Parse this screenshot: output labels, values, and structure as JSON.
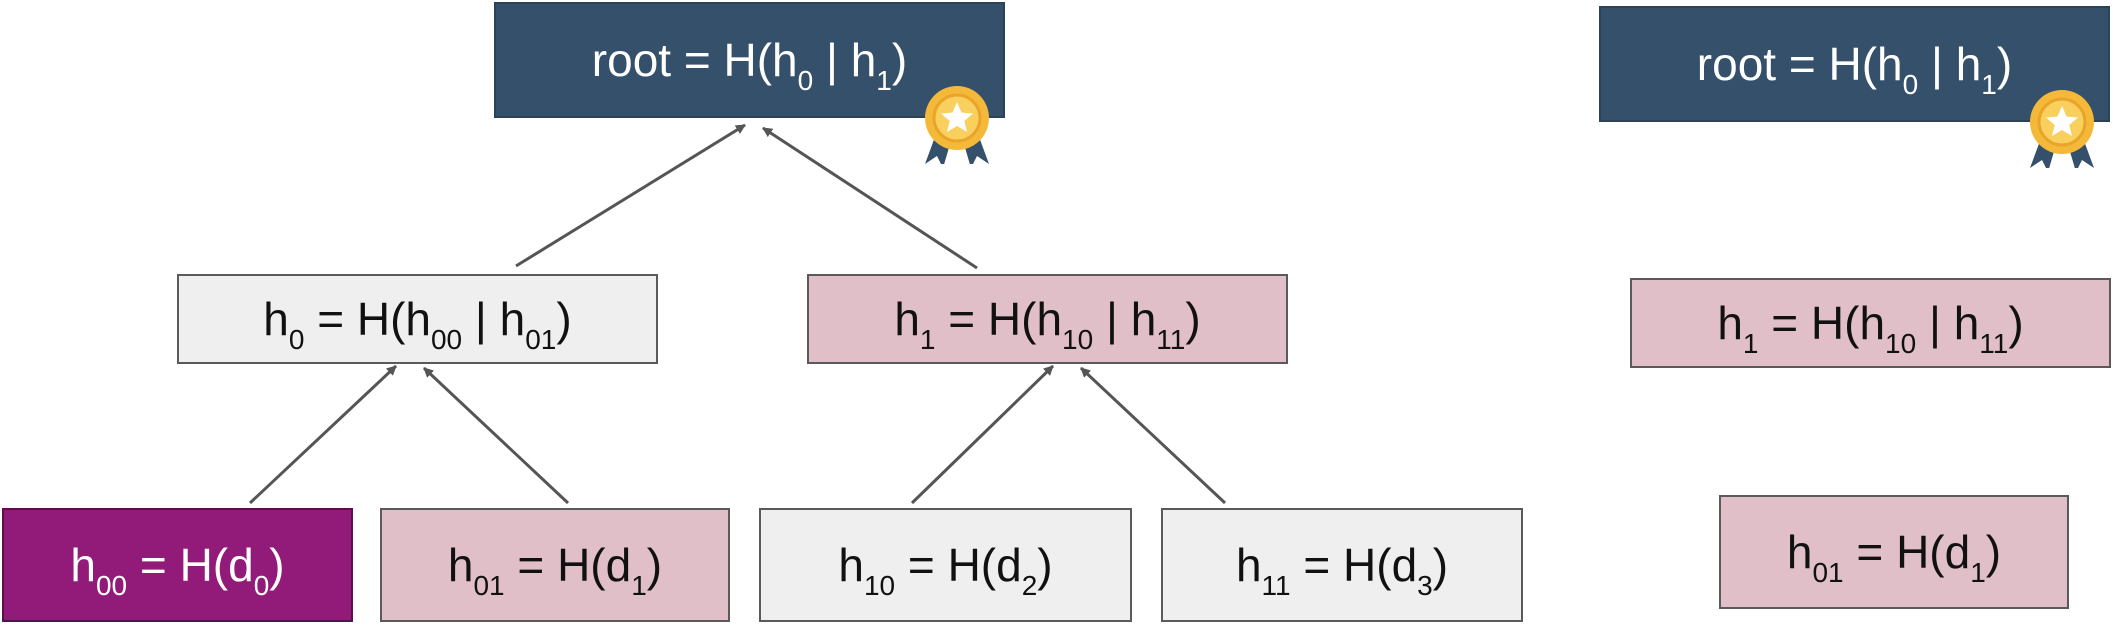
{
  "colors": {
    "root": "#35506a",
    "neutral": "#efefef",
    "proof": "#e0bfc9",
    "leaf_highlight": "#921a78",
    "edge": "#555555",
    "badge_gold": "#f5b93a",
    "badge_ribbon": "#35506a"
  },
  "icons": {
    "root_badge": "award-badge-icon"
  },
  "tree": {
    "root": {
      "base": "root = H(h",
      "s1": "0",
      "mid": " | h",
      "s2": "1",
      "end": ")"
    },
    "h0": {
      "a": "h",
      "s0": "0",
      "b": " = H(h",
      "s1": "00",
      "c": " | h",
      "s2": "01",
      "d": ")"
    },
    "h1": {
      "a": "h",
      "s0": "1",
      "b": " = H(h",
      "s1": "10",
      "c": " | h",
      "s2": "11",
      "d": ")"
    },
    "h00": {
      "a": "h",
      "s0": "00",
      "b": " = H(d",
      "s1": "0",
      "c": ")"
    },
    "h01": {
      "a": "h",
      "s0": "01",
      "b": " = H(d",
      "s1": "1",
      "c": ")"
    },
    "h10": {
      "a": "h",
      "s0": "10",
      "b": " = H(d",
      "s1": "2",
      "c": ")"
    },
    "h11": {
      "a": "h",
      "s0": "11",
      "b": " = H(d",
      "s1": "3",
      "c": ")"
    }
  },
  "proof": {
    "root": {
      "base": "root = H(h",
      "s1": "0",
      "mid": " | h",
      "s2": "1",
      "end": ")"
    },
    "h1": {
      "a": "h",
      "s0": "1",
      "b": " = H(h",
      "s1": "10",
      "c": " | h",
      "s2": "11",
      "d": ")"
    },
    "h01": {
      "a": "h",
      "s0": "01",
      "b": " = H(d",
      "s1": "1",
      "c": ")"
    }
  }
}
